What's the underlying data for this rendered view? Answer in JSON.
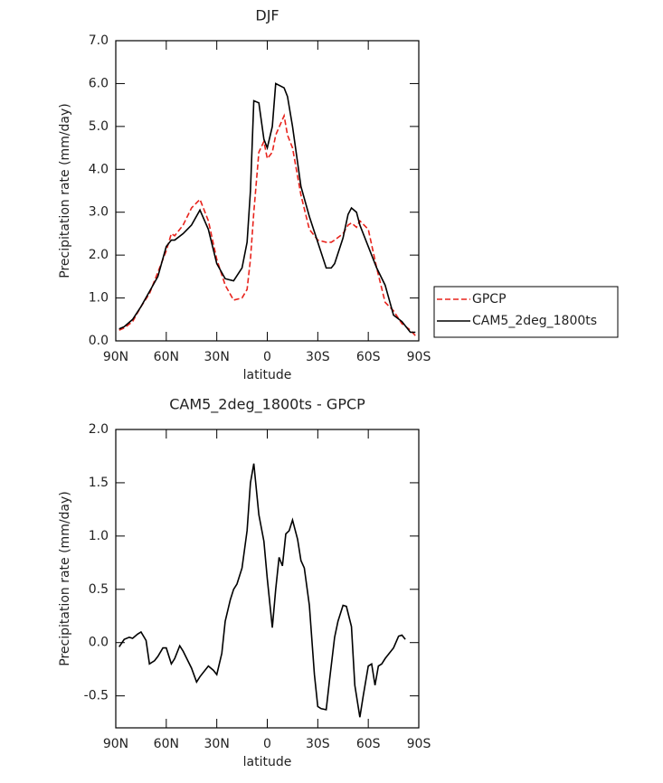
{
  "chart_data": [
    {
      "type": "line",
      "title": "DJF",
      "x_label": "latitude",
      "y_label": "Precipitation rate (mm/day)",
      "x": [
        88,
        85,
        80,
        75,
        70,
        65,
        60,
        57,
        55,
        50,
        45,
        40,
        35,
        30,
        25,
        20,
        15,
        12,
        10,
        8,
        5,
        2,
        0,
        -3,
        -5,
        -10,
        -12,
        -15,
        -20,
        -25,
        -30,
        -35,
        -38,
        -40,
        -45,
        -48,
        -50,
        -53,
        -55,
        -60,
        -65,
        -70,
        -75,
        -80,
        -85,
        -88
      ],
      "series": [
        {
          "name": "GPCP",
          "color": "#e8231c",
          "dash": true,
          "values": [
            0.25,
            0.3,
            0.45,
            0.8,
            1.1,
            1.6,
            2.1,
            2.5,
            2.45,
            2.7,
            3.1,
            3.3,
            2.8,
            1.9,
            1.3,
            0.95,
            1.0,
            1.2,
            1.9,
            3.0,
            4.4,
            4.65,
            4.25,
            4.4,
            4.8,
            5.25,
            4.8,
            4.5,
            3.4,
            2.6,
            2.35,
            2.3,
            2.3,
            2.35,
            2.5,
            2.7,
            2.75,
            2.65,
            2.8,
            2.6,
            1.7,
            0.9,
            0.7,
            0.4,
            0.25,
            0.12
          ]
        },
        {
          "name": "CAM5_2deg_1800ts",
          "color": "#000000",
          "dash": false,
          "values": [
            0.28,
            0.33,
            0.5,
            0.8,
            1.15,
            1.5,
            2.2,
            2.35,
            2.35,
            2.5,
            2.7,
            3.05,
            2.6,
            1.8,
            1.45,
            1.4,
            1.7,
            2.3,
            3.5,
            5.6,
            5.55,
            4.7,
            4.5,
            5.0,
            6.0,
            5.9,
            5.7,
            5.0,
            3.6,
            2.9,
            2.3,
            1.7,
            1.7,
            1.8,
            2.4,
            2.95,
            3.1,
            3.0,
            2.7,
            2.2,
            1.7,
            1.3,
            0.6,
            0.45,
            0.2,
            0.2
          ]
        }
      ],
      "xlim": [
        90,
        -90
      ],
      "xticks": [
        {
          "value": 90,
          "label": "90N"
        },
        {
          "value": 60,
          "label": "60N"
        },
        {
          "value": 30,
          "label": "30N"
        },
        0,
        {
          "value": -30,
          "label": "30S"
        },
        {
          "value": -60,
          "label": "60S"
        },
        {
          "value": -90,
          "label": "90S"
        }
      ],
      "ylim": [
        0,
        7
      ],
      "yticks": [
        {
          "value": 0,
          "label": "0.0"
        },
        {
          "value": 1,
          "label": "1.0"
        },
        {
          "value": 2,
          "label": "2.0"
        },
        {
          "value": 3,
          "label": "3.0"
        },
        {
          "value": 4,
          "label": "4.0"
        },
        {
          "value": 5,
          "label": "5.0"
        },
        {
          "value": 6,
          "label": "6.0"
        },
        {
          "value": 7,
          "label": "7.0"
        }
      ],
      "legend": "right"
    },
    {
      "type": "line",
      "title": "CAM5_2deg_1800ts - GPCP",
      "x_label": "latitude",
      "y_label": "Precipitation rate (mm/day)",
      "x": [
        88,
        85,
        82,
        80,
        77,
        75,
        72,
        70,
        67,
        65,
        62,
        60,
        57,
        55,
        52,
        50,
        45,
        42,
        40,
        35,
        32,
        30,
        27,
        25,
        22,
        20,
        18,
        15,
        12,
        10,
        8,
        5,
        2,
        0,
        -3,
        -5,
        -7,
        -9,
        -11,
        -13,
        -15,
        -18,
        -20,
        -22,
        -25,
        -28,
        -30,
        -32,
        -35,
        -37,
        -40,
        -42,
        -45,
        -47,
        -50,
        -52,
        -55,
        -57,
        -60,
        -62,
        -64,
        -66,
        -68,
        -70,
        -72,
        -75,
        -78,
        -80,
        -82
      ],
      "series": [
        {
          "color": "#000000",
          "dash": false,
          "values": [
            -0.04,
            0.03,
            0.05,
            0.04,
            0.08,
            0.1,
            0.02,
            -0.2,
            -0.17,
            -0.13,
            -0.05,
            -0.05,
            -0.2,
            -0.15,
            -0.03,
            -0.08,
            -0.24,
            -0.37,
            -0.32,
            -0.22,
            -0.26,
            -0.3,
            -0.1,
            0.2,
            0.4,
            0.5,
            0.55,
            0.7,
            1.05,
            1.5,
            1.68,
            1.2,
            0.95,
            0.6,
            0.14,
            0.5,
            0.8,
            0.72,
            1.02,
            1.05,
            1.15,
            0.97,
            0.77,
            0.7,
            0.35,
            -0.3,
            -0.6,
            -0.62,
            -0.63,
            -0.35,
            0.05,
            0.2,
            0.35,
            0.34,
            0.15,
            -0.4,
            -0.7,
            -0.5,
            -0.22,
            -0.2,
            -0.4,
            -0.22,
            -0.2,
            -0.15,
            -0.11,
            -0.05,
            0.06,
            0.07,
            0.03
          ]
        }
      ],
      "xlim": [
        90,
        -90
      ],
      "xticks": [
        {
          "value": 90,
          "label": "90N"
        },
        {
          "value": 60,
          "label": "60N"
        },
        {
          "value": 30,
          "label": "30N"
        },
        0,
        {
          "value": -30,
          "label": "30S"
        },
        {
          "value": -60,
          "label": "60S"
        },
        {
          "value": -90,
          "label": "90S"
        }
      ],
      "ylim": [
        -0.8,
        2.0
      ],
      "yticks": [
        -0.5,
        {
          "value": 0,
          "label": "0.0"
        },
        0.5,
        {
          "value": 1,
          "label": "1.0"
        },
        1.5,
        {
          "value": 2,
          "label": "2.0"
        }
      ]
    }
  ]
}
